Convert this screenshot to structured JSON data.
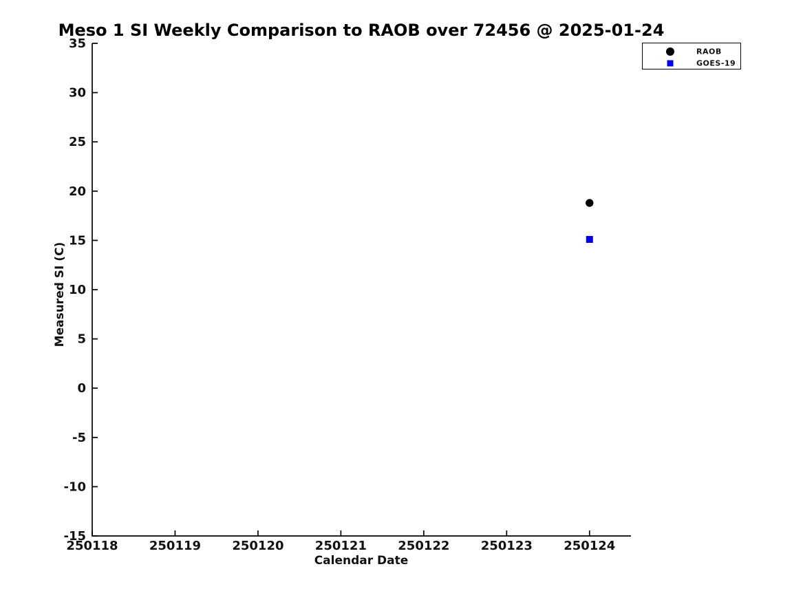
{
  "chart_data": {
    "type": "scatter",
    "title": "Meso 1 SI Weekly Comparison to RAOB over 72456 @ 2025-01-24",
    "xlabel": "Calendar Date",
    "ylabel": "Measured SI (C)",
    "x_ticks": [
      250118,
      250119,
      250120,
      250121,
      250122,
      250123,
      250124
    ],
    "y_ticks": [
      35,
      30,
      25,
      20,
      15,
      10,
      5,
      0,
      -5,
      -10,
      -15
    ],
    "xlim": [
      250118,
      250124.5
    ],
    "ylim": [
      -15,
      35
    ],
    "grid": false,
    "background_color": "#ffffff",
    "axis_color": "#000000",
    "legend_position": "top-right",
    "series": [
      {
        "name": "RAOB",
        "marker": "circle",
        "color": "#000000",
        "points": [
          {
            "x": 250124,
            "y": 18.8
          }
        ]
      },
      {
        "name": "GOES-19",
        "marker": "square",
        "color": "#0000ee",
        "points": [
          {
            "x": 250124,
            "y": 15.1
          }
        ]
      }
    ]
  }
}
